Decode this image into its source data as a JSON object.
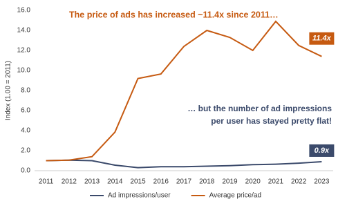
{
  "chart_data": {
    "type": "line",
    "title": "The price of ads has increased ~11.4x since 2011…",
    "annotation": [
      "… but the number of ad impressions",
      "per user has stayed pretty flat!"
    ],
    "y_label": "Index (1.00 = 2011)",
    "categories": [
      "2011",
      "2012",
      "2013",
      "2014",
      "2015",
      "2016",
      "2017",
      "2018",
      "2019",
      "2020",
      "2021",
      "2022",
      "2023"
    ],
    "series": [
      {
        "name": "Ad impressions/user",
        "color": "#3b4a6b",
        "values": [
          1.0,
          1.05,
          1.0,
          0.55,
          0.3,
          0.4,
          0.4,
          0.45,
          0.5,
          0.6,
          0.65,
          0.75,
          0.9
        ],
        "value_labels": [
          null,
          null,
          null,
          null,
          null,
          null,
          null,
          null,
          null,
          null,
          null,
          null,
          "0.9x"
        ]
      },
      {
        "name": "Average price/ad",
        "color": "#c65a11",
        "values": [
          1.0,
          1.05,
          1.4,
          3.85,
          9.2,
          9.65,
          12.4,
          14.0,
          13.3,
          12.0,
          14.9,
          12.5,
          11.4
        ],
        "value_labels": [
          null,
          null,
          null,
          null,
          null,
          null,
          null,
          null,
          null,
          null,
          null,
          null,
          "11.4x"
        ]
      }
    ],
    "ylim": [
      0,
      16
    ],
    "yticks": [
      {
        "value": 0,
        "label": "0.0"
      },
      {
        "value": 2,
        "label": "2.0"
      },
      {
        "value": 4,
        "label": "4.0"
      },
      {
        "value": 6,
        "label": "6.0"
      },
      {
        "value": 8,
        "label": "8.0"
      },
      {
        "value": 10,
        "label": "10.0"
      },
      {
        "value": 12,
        "label": "12.0"
      },
      {
        "value": 14,
        "label": "14.0"
      },
      {
        "value": 16,
        "label": "16.0"
      }
    ],
    "grid": false,
    "legend": "bottom"
  }
}
